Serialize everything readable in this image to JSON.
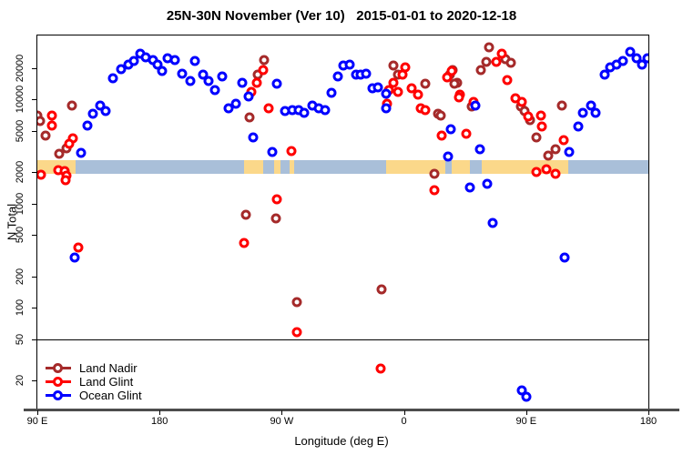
{
  "chart_data": {
    "type": "scatter",
    "title": "25N-30N November (Ver 10)   2015-01-01 to 2020-12-18",
    "xlabel": "Longitude (deg E)",
    "ylabel": "N Total",
    "y_scale": "log",
    "xlim": [
      90,
      540
    ],
    "ylim": [
      10.5,
      41300
    ],
    "grid": false,
    "legend_position": "bottom-left inside plot",
    "x_ticks": [
      {
        "value": 90,
        "label": "90 E"
      },
      {
        "value": 180,
        "label": "180"
      },
      {
        "value": 270,
        "label": "90 W"
      },
      {
        "value": 360,
        "label": "0"
      },
      {
        "value": 450,
        "label": "90 E"
      },
      {
        "value": 540,
        "label": "180"
      }
    ],
    "y_ticks": [
      20000,
      10000,
      5000,
      2000,
      1000,
      500,
      200,
      100,
      50,
      20
    ],
    "reference_line_n": 50,
    "map_strip": {
      "n_top": 2600,
      "n_bottom": 1950,
      "land_color": "#FBD88A",
      "ocean_color": "#A9BFD9",
      "segments": [
        {
          "from": 90,
          "to": 118,
          "type": "land"
        },
        {
          "from": 118,
          "to": 242,
          "type": "ocean"
        },
        {
          "from": 242,
          "to": 256,
          "type": "land"
        },
        {
          "from": 256,
          "to": 264.6,
          "type": "ocean"
        },
        {
          "from": 264.6,
          "to": 269.3,
          "type": "land"
        },
        {
          "from": 269.3,
          "to": 276,
          "type": "ocean"
        },
        {
          "from": 276,
          "to": 279.4,
          "type": "land"
        },
        {
          "from": 279.4,
          "to": 346.6,
          "type": "ocean"
        },
        {
          "from": 346.6,
          "to": 390.2,
          "type": "land"
        },
        {
          "from": 390.2,
          "to": 394.9,
          "type": "ocean"
        },
        {
          "from": 394.9,
          "to": 408.3,
          "type": "land"
        },
        {
          "from": 408.3,
          "to": 417,
          "type": "ocean"
        },
        {
          "from": 417,
          "to": 480.9,
          "type": "land"
        },
        {
          "from": 480.9,
          "to": 540,
          "type": "ocean"
        }
      ]
    },
    "series": [
      {
        "name": "Land Nadir",
        "color": "#A52A2A",
        "points": [
          [
            115.5,
            8750
          ],
          [
            90.2,
            7020
          ],
          [
            92,
            6220
          ],
          [
            96,
            4510
          ],
          [
            111.5,
            3400
          ],
          [
            106,
            3010
          ],
          [
            257,
            24000
          ],
          [
            252.5,
            17400
          ],
          [
            246.5,
            6740
          ],
          [
            243.8,
            780
          ],
          [
            266,
            719
          ],
          [
            281.4,
            113
          ],
          [
            343.2,
            150
          ],
          [
            382.1,
            1930
          ],
          [
            351.9,
            21200
          ],
          [
            355.3,
            17400
          ],
          [
            375.4,
            14200
          ],
          [
            384.8,
            7310
          ],
          [
            386.8,
            7020
          ],
          [
            395.6,
            19200
          ],
          [
            393.6,
            17400
          ],
          [
            399,
            14500
          ],
          [
            396.9,
            14200
          ],
          [
            422.4,
            31800
          ],
          [
            420.4,
            23000
          ],
          [
            434.5,
            24400
          ],
          [
            438.5,
            22500
          ],
          [
            416.4,
            19200
          ],
          [
            409.7,
            8590
          ],
          [
            446,
            8590
          ],
          [
            448.6,
            7760
          ],
          [
            452.6,
            6340
          ],
          [
            457.3,
            4330
          ],
          [
            476.1,
            8750
          ],
          [
            466,
            2890
          ],
          [
            471.4,
            3330
          ]
        ]
      },
      {
        "name": "Land Glint",
        "color": "#FF0000",
        "points": [
          [
            100.7,
            7020
          ],
          [
            100.7,
            5620
          ],
          [
            116.2,
            4240
          ],
          [
            113.5,
            3760
          ],
          [
            92.7,
            1890
          ],
          [
            105.4,
            2090
          ],
          [
            110.1,
            2050
          ],
          [
            111.5,
            1850
          ],
          [
            110.5,
            1680
          ],
          [
            120.2,
            378
          ],
          [
            256.5,
            19200
          ],
          [
            251.9,
            14500
          ],
          [
            247.8,
            11900
          ],
          [
            260.6,
            8240
          ],
          [
            277.4,
            3200
          ],
          [
            242.5,
            418
          ],
          [
            266.6,
            1100
          ],
          [
            281,
            58
          ],
          [
            342.5,
            26
          ],
          [
            382.1,
            1350
          ],
          [
            360.7,
            20400
          ],
          [
            358.6,
            17400
          ],
          [
            351.9,
            14500
          ],
          [
            348.6,
            12300
          ],
          [
            355.3,
            11900
          ],
          [
            347.2,
            9120
          ],
          [
            365.4,
            12800
          ],
          [
            370.1,
            11100
          ],
          [
            372.1,
            8240
          ],
          [
            375.4,
            7930
          ],
          [
            401,
            11100
          ],
          [
            411,
            9480
          ],
          [
            387.5,
            4500
          ],
          [
            405.6,
            4690
          ],
          [
            394.9,
            18800
          ],
          [
            391.5,
            16300
          ],
          [
            400.3,
            10500
          ],
          [
            431.8,
            27600
          ],
          [
            427.8,
            23000
          ],
          [
            435.9,
            15400
          ],
          [
            441.9,
            10300
          ],
          [
            446.6,
            9480
          ],
          [
            451.3,
            6900
          ],
          [
            460.7,
            7020
          ],
          [
            461.4,
            5510
          ],
          [
            477.5,
            4070
          ],
          [
            457.3,
            2010
          ],
          [
            464.7,
            2140
          ],
          [
            471.4,
            1930
          ]
        ]
      },
      {
        "name": "Ocean Glint",
        "color": "#0000FF",
        "points": [
          [
            145.7,
            16000
          ],
          [
            151.8,
            19600
          ],
          [
            157.2,
            21700
          ],
          [
            161.2,
            23500
          ],
          [
            165.9,
            27600
          ],
          [
            169.9,
            25500
          ],
          [
            175.3,
            24000
          ],
          [
            178.6,
            21700
          ],
          [
            182,
            18800
          ],
          [
            186,
            25000
          ],
          [
            191.4,
            24000
          ],
          [
            196.8,
            17700
          ],
          [
            202.8,
            15100
          ],
          [
            136.3,
            8750
          ],
          [
            131,
            7310
          ],
          [
            140.4,
            7760
          ],
          [
            126.9,
            5620
          ],
          [
            121.9,
            3070
          ],
          [
            117.5,
            303
          ],
          [
            206.2,
            23500
          ],
          [
            212.2,
            17400
          ],
          [
            216.3,
            15100
          ],
          [
            221,
            12300
          ],
          [
            226.3,
            16700
          ],
          [
            241.1,
            14500
          ],
          [
            245.8,
            10700
          ],
          [
            231,
            8240
          ],
          [
            236.4,
            9120
          ],
          [
            266.6,
            14200
          ],
          [
            249.2,
            4330
          ],
          [
            263.3,
            3130
          ],
          [
            272.7,
            7760
          ],
          [
            278.1,
            7930
          ],
          [
            282.8,
            7930
          ],
          [
            286.8,
            7440
          ],
          [
            292.8,
            8750
          ],
          [
            296.9,
            8240
          ],
          [
            301.6,
            7930
          ],
          [
            306.3,
            11600
          ],
          [
            311.6,
            16700
          ],
          [
            315,
            21200
          ],
          [
            320.3,
            21700
          ],
          [
            325,
            17400
          ],
          [
            328.4,
            17400
          ],
          [
            331.8,
            17700
          ],
          [
            336.5,
            12800
          ],
          [
            340.5,
            13100
          ],
          [
            346.6,
            11400
          ],
          [
            346.6,
            8240
          ],
          [
            394.3,
            5180
          ],
          [
            412.4,
            8770
          ],
          [
            392.2,
            2830
          ],
          [
            415.7,
            3330
          ],
          [
            408.3,
            1430
          ],
          [
            421.1,
            1550
          ],
          [
            425.1,
            652
          ],
          [
            478.2,
            303
          ],
          [
            446.6,
            16
          ],
          [
            450,
            13.9
          ],
          [
            491.6,
            7440
          ],
          [
            497.7,
            8750
          ],
          [
            501,
            7440
          ],
          [
            488.3,
            5510
          ],
          [
            481.6,
            3130
          ],
          [
            507.8,
            17400
          ],
          [
            511.8,
            20400
          ],
          [
            516.5,
            21700
          ],
          [
            521.2,
            23500
          ],
          [
            526.6,
            28700
          ],
          [
            531.3,
            25000
          ],
          [
            535.3,
            21700
          ],
          [
            539.4,
            25000
          ]
        ]
      }
    ]
  }
}
